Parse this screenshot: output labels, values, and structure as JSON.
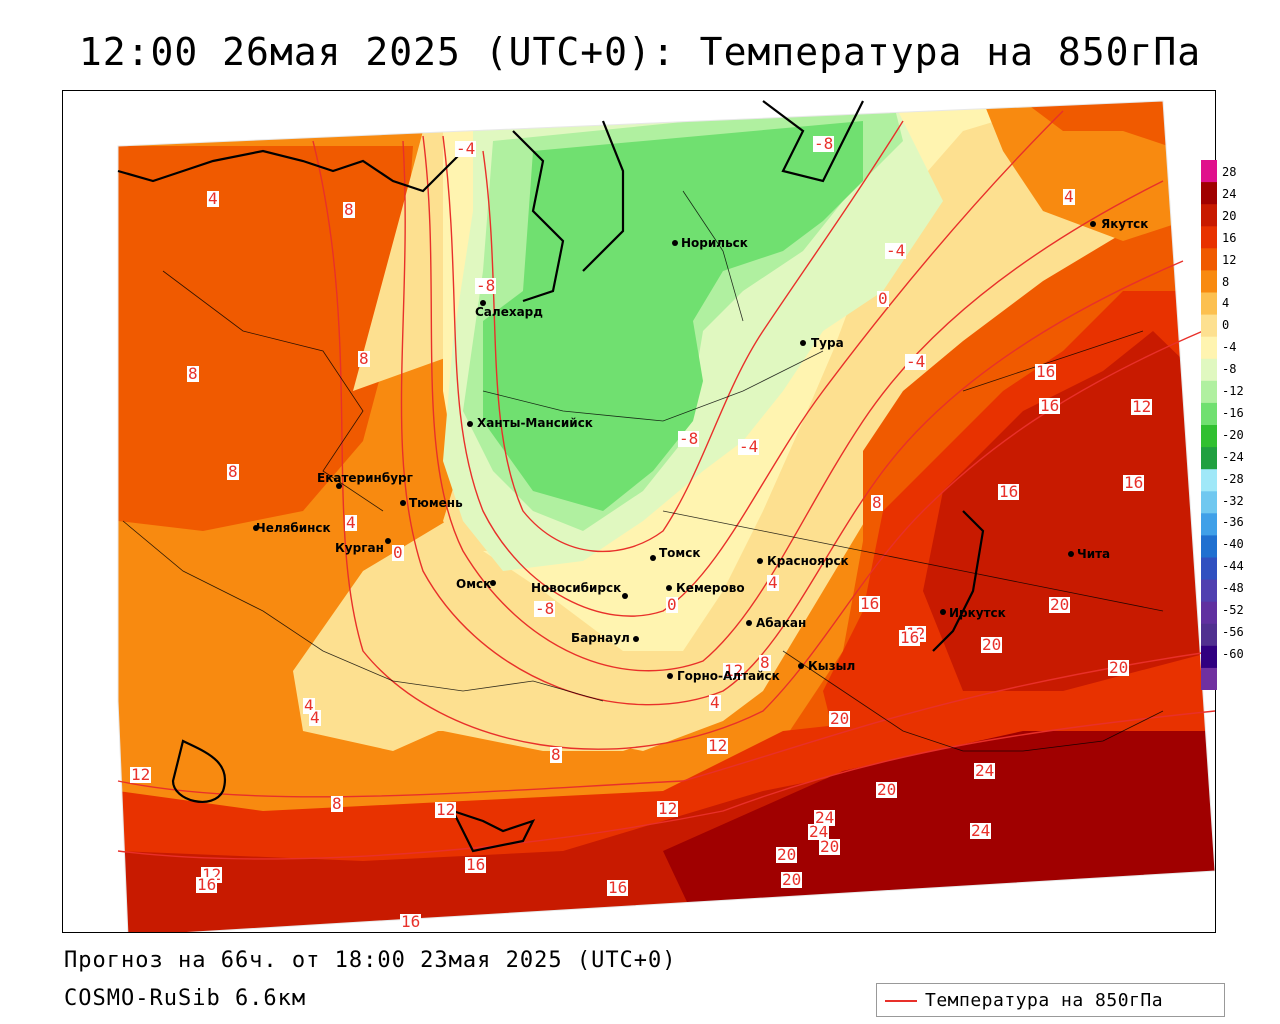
{
  "title": "12:00 26мая 2025 (UTC+0): Температура на 850гПа",
  "footer": {
    "forecast": "Прогноз на 66ч. от 18:00 23мая 2025 (UTC+0)",
    "model": "COSMO-RuSib 6.6км"
  },
  "legend": {
    "label": "Температура на 850гПа",
    "color": "#e8302a"
  },
  "colorbar": {
    "levels": [
      "28",
      "24",
      "20",
      "16",
      "12",
      "8",
      "4",
      "0",
      "-4",
      "-8",
      "-12",
      "-16",
      "-20",
      "-24",
      "-28",
      "-32",
      "-36",
      "-40",
      "-44",
      "-48",
      "-52",
      "-56",
      "-60"
    ],
    "colors": [
      "#e0108c",
      "#a00000",
      "#c81a00",
      "#e83200",
      "#f05a00",
      "#f88a10",
      "#fcc050",
      "#fde090",
      "#fff4b0",
      "#e0f8c0",
      "#b0f0a0",
      "#70e070",
      "#30c030",
      "#20a040",
      "#a0e8f8",
      "#70c8f0",
      "#40a0e8",
      "#2070d0",
      "#3050c0",
      "#5040b0",
      "#6030a0",
      "#503090",
      "#300080",
      "#7030a0"
    ]
  },
  "cities": [
    {
      "name": "Норильск"
    },
    {
      "name": "Якутск"
    },
    {
      "name": "Салехард"
    },
    {
      "name": "Тура"
    },
    {
      "name": "Ханты-Мансийск"
    },
    {
      "name": "Екатеринбург"
    },
    {
      "name": "Тюмень"
    },
    {
      "name": "Челябинск"
    },
    {
      "name": "Курган"
    },
    {
      "name": "Томск"
    },
    {
      "name": "Красноярск"
    },
    {
      "name": "Омск"
    },
    {
      "name": "Новосибирск"
    },
    {
      "name": "Кемерово"
    },
    {
      "name": "Абакан"
    },
    {
      "name": "Барнаул"
    },
    {
      "name": "Горно-Алтайск"
    },
    {
      "name": "Кызыл"
    },
    {
      "name": "Иркутск"
    },
    {
      "name": "Чита"
    }
  ],
  "contour_labels": [
    "-4",
    "-8",
    "-8",
    "-4",
    "-8",
    "-8",
    "-4",
    "0",
    "-4",
    "4",
    "4",
    "8",
    "8",
    "8",
    "8",
    "4",
    "0",
    "4",
    "0",
    "4",
    "8",
    "12",
    "12",
    "16",
    "16",
    "12",
    "16",
    "16",
    "16",
    "12",
    "20",
    "20",
    "20",
    "20",
    "12",
    "8",
    "4",
    "4",
    "8",
    "8",
    "12",
    "12",
    "16",
    "16",
    "16",
    "16",
    "20",
    "20",
    "24",
    "24",
    "20",
    "24",
    "24",
    "20",
    "16",
    "12",
    "12"
  ]
}
